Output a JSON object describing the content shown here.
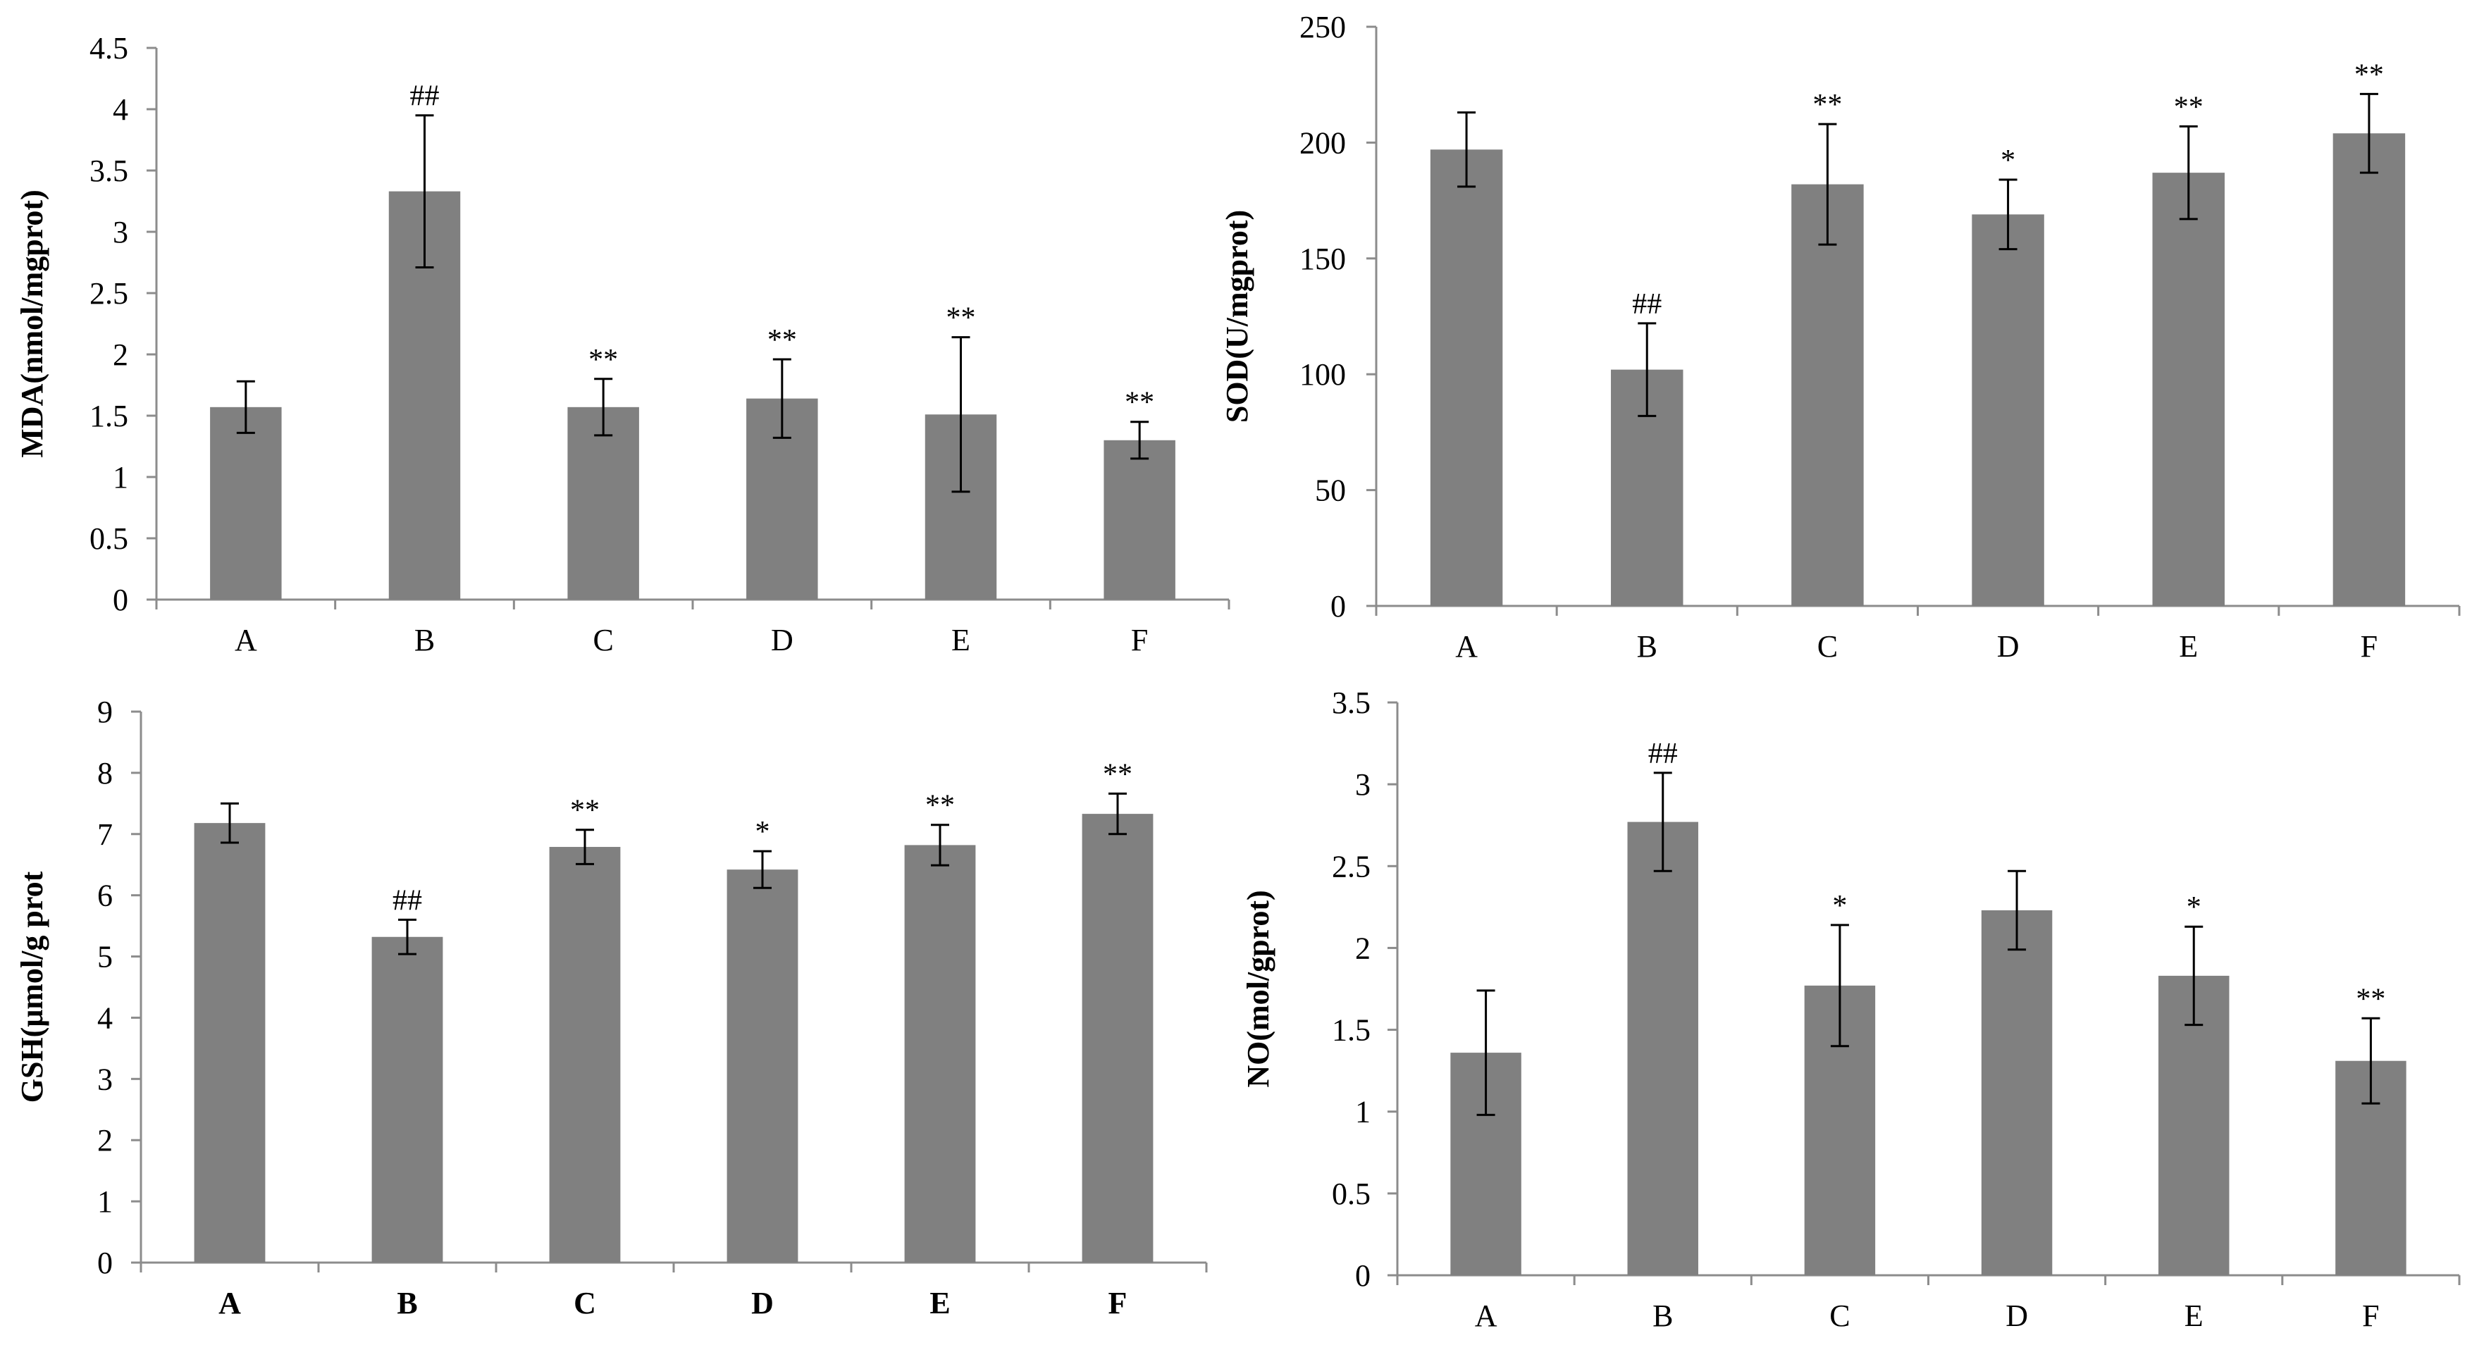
{
  "chart_data": [
    {
      "type": "bar",
      "ylabel": "MDA(nmol/mgprot)",
      "xlabel": "",
      "categories": [
        "A",
        "B",
        "C",
        "D",
        "E",
        "F"
      ],
      "values": [
        1.57,
        3.33,
        1.57,
        1.64,
        1.51,
        1.3
      ],
      "errors": [
        0.21,
        0.62,
        0.23,
        0.32,
        0.63,
        0.15
      ],
      "annotations": [
        "",
        "##",
        "**",
        "**",
        "**",
        "**"
      ],
      "ylim": [
        0,
        4.5
      ],
      "yticks": [
        "0",
        "0.5",
        "1",
        "1.5",
        "2",
        "2.5",
        "3",
        "3.5",
        "4",
        "4.5"
      ],
      "color": "#808080"
    },
    {
      "type": "bar",
      "ylabel": "SOD(U/mgprot)",
      "xlabel": "",
      "categories": [
        "A",
        "B",
        "C",
        "D",
        "E",
        "F"
      ],
      "values": [
        197,
        102,
        182,
        169,
        187,
        204
      ],
      "errors": [
        16,
        20,
        26,
        15,
        20,
        17
      ],
      "annotations": [
        "",
        "##",
        "**",
        "*",
        "**",
        "**"
      ],
      "ylim": [
        0,
        250
      ],
      "yticks": [
        "0",
        "50",
        "100",
        "150",
        "200",
        "250"
      ],
      "color": "#808080"
    },
    {
      "type": "bar",
      "ylabel": "GSH(μmol/g prot",
      "xlabel": "",
      "categories": [
        "A",
        "B",
        "C",
        "D",
        "E",
        "F"
      ],
      "values": [
        7.18,
        5.32,
        6.79,
        6.42,
        6.82,
        7.33
      ],
      "errors": [
        0.32,
        0.28,
        0.28,
        0.3,
        0.33,
        0.33
      ],
      "annotations": [
        "",
        "##",
        "**",
        "*",
        "**",
        "**"
      ],
      "ylim": [
        0,
        9
      ],
      "yticks": [
        "0",
        "1",
        "2",
        "3",
        "4",
        "5",
        "6",
        "7",
        "8",
        "9"
      ],
      "color": "#808080"
    },
    {
      "type": "bar",
      "ylabel": "NO(mol/gprot)",
      "xlabel": "",
      "categories": [
        "A",
        "B",
        "C",
        "D",
        "E",
        "F"
      ],
      "values": [
        1.36,
        2.77,
        1.77,
        2.23,
        1.83,
        1.31
      ],
      "errors": [
        0.38,
        0.3,
        0.37,
        0.24,
        0.3,
        0.26
      ],
      "annotations": [
        "",
        "##",
        "*",
        "",
        "*",
        "**"
      ],
      "ylim": [
        0,
        3.5
      ],
      "yticks": [
        "0",
        "0.5",
        "1",
        "1.5",
        "2",
        "2.5",
        "3",
        "3.5"
      ],
      "color": "#808080"
    }
  ]
}
